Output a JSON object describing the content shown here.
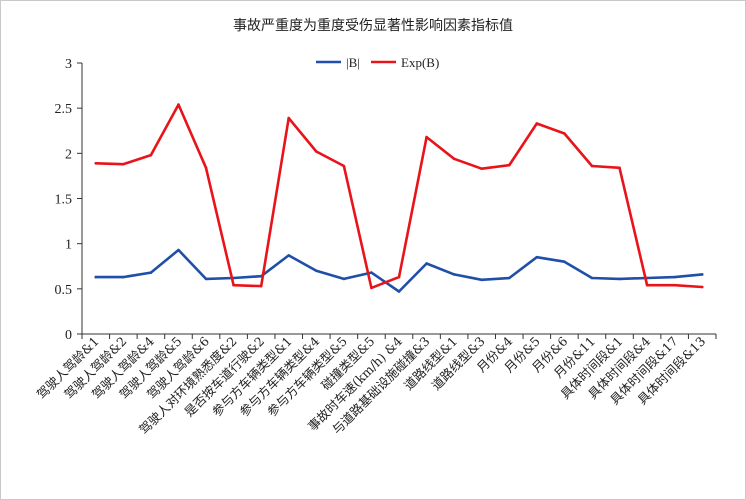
{
  "chart_data": {
    "type": "line",
    "title": "事故严重度为重度受伤显著性影响因素指标值",
    "xlabel": "",
    "ylabel": "",
    "ylim": [
      0,
      3
    ],
    "yticks": [
      0,
      0.5,
      1,
      1.5,
      2,
      2.5,
      3
    ],
    "ytick_labels": [
      "0",
      "0.5",
      "1",
      "1.5",
      "2",
      "2.5",
      "3"
    ],
    "grid": false,
    "legend_position": "top-center",
    "categories": [
      "驾驶人驾龄&1",
      "驾驶人驾龄&2",
      "驾驶人驾龄&4",
      "驾驶人驾龄&5",
      "驾驶人驾龄&6",
      "驾驶人对环境熟悉度&2",
      "是否按车道行驶&2",
      "参与方车辆类型&1",
      "参与方车辆类型&4",
      "参与方车辆类型&5",
      "碰撞类型&5",
      "事故时车速(km/h) &4",
      "与道路基础设施碰撞&3",
      "道路线型&1",
      "道路线型&3",
      "月份&4",
      "月份&5",
      "月份&6",
      "月份&11",
      "具体时间段&1",
      "具体时间段&4",
      "具体时间段&17",
      "具体时间段&13"
    ],
    "series": [
      {
        "name": "|B|",
        "color": "#1f4fa8",
        "values": [
          0.63,
          0.63,
          0.68,
          0.93,
          0.61,
          0.62,
          0.64,
          0.87,
          0.7,
          0.61,
          0.68,
          0.47,
          0.78,
          0.66,
          0.6,
          0.62,
          0.85,
          0.8,
          0.62,
          0.61,
          0.62,
          0.63,
          0.66
        ]
      },
      {
        "name": "Exp(B)",
        "color": "#e8141a",
        "values": [
          1.89,
          1.88,
          1.98,
          2.54,
          1.84,
          0.54,
          0.53,
          2.39,
          2.02,
          1.86,
          0.51,
          0.63,
          2.18,
          1.94,
          1.83,
          1.87,
          2.33,
          2.22,
          1.86,
          1.84,
          0.54,
          0.54,
          0.52
        ]
      }
    ]
  }
}
